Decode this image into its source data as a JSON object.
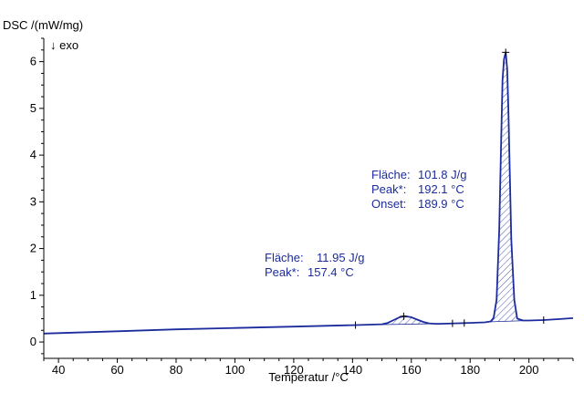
{
  "chart_data": {
    "type": "line",
    "ylabel": "DSC /(mW/mg)",
    "direction_note": "↓ exo",
    "xlabel": "Temperatur /°C",
    "xlim": [
      35,
      215
    ],
    "ylim": [
      -0.35,
      6.5
    ],
    "x_ticks": [
      40,
      60,
      80,
      100,
      120,
      140,
      160,
      180,
      200
    ],
    "y_ticks": [
      0,
      1,
      2,
      3,
      4,
      5,
      6
    ],
    "grid": false,
    "colors": {
      "curve": "#1c2c9c",
      "axis": "#000000",
      "annotation_text": "#1c2c9c"
    },
    "series": [
      {
        "x": [
          35,
          40,
          60,
          80,
          100,
          120,
          140,
          145,
          150,
          152,
          154,
          156,
          157.4,
          158,
          160,
          162,
          164,
          166,
          168,
          170,
          175,
          180,
          185,
          187,
          188,
          189,
          189.9,
          190.5,
          191,
          191.5,
          192.1,
          192.6,
          193,
          193.5,
          194,
          195,
          196,
          198,
          200,
          205,
          210,
          215
        ],
        "y": [
          0.18,
          0.19,
          0.23,
          0.27,
          0.3,
          0.33,
          0.36,
          0.37,
          0.38,
          0.41,
          0.47,
          0.53,
          0.55,
          0.55,
          0.53,
          0.48,
          0.43,
          0.4,
          0.39,
          0.39,
          0.4,
          0.41,
          0.42,
          0.44,
          0.52,
          0.9,
          2.4,
          4.2,
          5.6,
          6.05,
          6.2,
          5.85,
          5.0,
          3.6,
          2.2,
          0.9,
          0.5,
          0.46,
          0.46,
          0.47,
          0.49,
          0.51
        ]
      }
    ],
    "peaks": [
      {
        "area_label": "Fläche:",
        "area_value": "11.95 J/g",
        "peak_label": "Peak*:",
        "peak_value": "157.4 °C",
        "x_start": 141,
        "x_end": 174,
        "peak_x": 157.4,
        "peak_y": 0.55,
        "limit_markers": [
          141,
          174,
          178
        ]
      },
      {
        "area_label": "Fläche:",
        "area_value": "101.8 J/g",
        "peak_label": "Peak*:",
        "peak_value": "192.1 °C",
        "onset_label": "Onset:",
        "onset_value": "189.9 °C",
        "x_start": 186,
        "x_end": 205,
        "peak_x": 192.1,
        "peak_y": 6.2,
        "limit_markers": [
          205
        ]
      }
    ]
  }
}
